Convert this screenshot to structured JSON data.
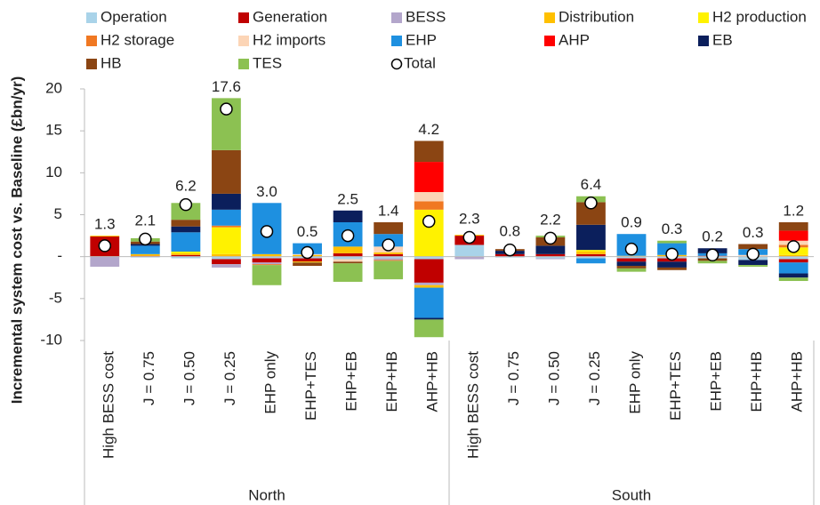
{
  "chart_data": {
    "type": "stacked-bar",
    "y_label": "Incremental system cost vs. Baseline (£bn/yr)",
    "legend": "top",
    "groups": [
      {
        "label": "North",
        "categories": [
          "High BESS cost",
          "J = 0.75",
          "J = 0.50",
          "J = 0.25",
          "EHP only",
          "EHP+TES",
          "EHP+EB",
          "EHP+HB",
          "AHP+HB"
        ]
      },
      {
        "label": "South",
        "categories": [
          "High BESS cost",
          "J = 0.75",
          "J = 0.50",
          "J = 0.25",
          "EHP only",
          "EHP+TES",
          "EHP+EB",
          "EHP+HB",
          "AHP+HB"
        ]
      }
    ],
    "ylim": [
      -10,
      20
    ],
    "yticks": [
      -10,
      -5,
      {
        "value": 0,
        "label": "-"
      },
      5,
      10,
      15,
      20
    ],
    "series": [
      {
        "name": "Operation",
        "color": "#a9d3e9",
        "values": [
          0,
          -0.1,
          -0.2,
          -0.3,
          -0.2,
          -0.2,
          -0.3,
          -0.2,
          -0.3,
          1.4,
          -0.1,
          -0.2,
          -0.2,
          -0.2,
          -0.2,
          -0.2,
          -0.4,
          -0.3
        ]
      },
      {
        "name": "Generation",
        "color": "#c00000",
        "values": [
          2.4,
          0.1,
          0.2,
          -0.6,
          -0.5,
          -0.4,
          0.4,
          0.3,
          -2.8,
          1.1,
          0.3,
          0.3,
          0.3,
          -0.4,
          -0.4,
          0.1,
          0,
          -0.4
        ]
      },
      {
        "name": "BESS",
        "color": "#b3a6cb",
        "values": [
          -1.2,
          0,
          0,
          -0.4,
          -0.2,
          0,
          0,
          -0.2,
          -0.3,
          -0.3,
          0,
          -0.1,
          0,
          0,
          0,
          0,
          0,
          0
        ]
      },
      {
        "name": "Distribution",
        "color": "#ffc000",
        "values": [
          0.1,
          0.2,
          0.2,
          0.3,
          0.3,
          0.2,
          0.8,
          0.2,
          -0.3,
          0.1,
          0,
          0,
          0.3,
          0.1,
          0.2,
          0,
          0,
          0.2
        ]
      },
      {
        "name": "H2 production",
        "color": "#fff200",
        "values": [
          0,
          0,
          0.2,
          3.2,
          0,
          -0.1,
          0,
          0,
          5.6,
          0,
          0,
          0,
          0.2,
          0,
          0,
          0,
          0,
          0.9
        ]
      },
      {
        "name": "H2 storage",
        "color": "#f07822",
        "values": [
          0,
          0,
          0,
          0.2,
          -0.1,
          0,
          0,
          -0.1,
          1.0,
          0,
          0,
          0,
          0,
          0,
          0,
          0,
          0,
          0.3
        ]
      },
      {
        "name": "H2 imports",
        "color": "#fcd5b6",
        "values": [
          0,
          0,
          0,
          0,
          0,
          0.1,
          -0.3,
          0.7,
          1.1,
          0,
          0,
          0,
          0,
          0,
          0,
          0,
          0.2,
          0.5
        ]
      },
      {
        "name": "EHP",
        "color": "#1e90e0",
        "values": [
          0,
          1.0,
          2.3,
          1.9,
          6.1,
          1.3,
          2.9,
          1.5,
          -3.6,
          0,
          0,
          0,
          -0.6,
          2.6,
          1.4,
          0.3,
          0.7,
          -1.3
        ]
      },
      {
        "name": "AHP",
        "color": "#ff0000",
        "values": [
          0,
          0,
          0,
          0,
          0,
          0,
          0,
          0,
          3.6,
          0,
          0,
          0,
          0,
          0,
          0,
          0,
          0,
          1.2
        ]
      },
      {
        "name": "EB",
        "color": "#0b1f5c",
        "values": [
          0,
          0.2,
          0.7,
          1.9,
          0,
          0,
          1.4,
          0,
          -0.2,
          0,
          0.4,
          1.0,
          3.0,
          -0.5,
          -0.7,
          0.6,
          -0.6,
          -0.5
        ]
      },
      {
        "name": "HB",
        "color": "#8b4513",
        "values": [
          0,
          0.3,
          0.8,
          5.2,
          0,
          -0.4,
          -0.2,
          1.4,
          2.5,
          0,
          0.2,
          1.0,
          2.7,
          -0.3,
          -0.3,
          -0.3,
          0.6,
          1.0
        ]
      },
      {
        "name": "TES",
        "color": "#8cc152",
        "values": [
          0,
          0.4,
          2.0,
          6.2,
          -2.4,
          0,
          -2.2,
          -2.2,
          -2.1,
          0,
          0,
          0.2,
          0.7,
          -0.4,
          0.3,
          -0.3,
          -0.2,
          -0.4
        ]
      }
    ],
    "total": {
      "name": "Total",
      "values": [
        1.3,
        2.1,
        6.2,
        17.6,
        3.0,
        0.5,
        2.5,
        1.4,
        4.2,
        2.3,
        0.8,
        2.2,
        6.4,
        0.9,
        0.3,
        0.2,
        0.3,
        1.2
      ],
      "value_labels": [
        "1.3",
        "2.1",
        "6.2",
        "17.6",
        "3.0",
        "0.5",
        "2.5",
        "1.4",
        "4.2",
        "2.3",
        "0.8",
        "2.2",
        "6.4",
        "0.9",
        "0.3",
        "0.2",
        "0.3",
        "1.2"
      ]
    }
  }
}
